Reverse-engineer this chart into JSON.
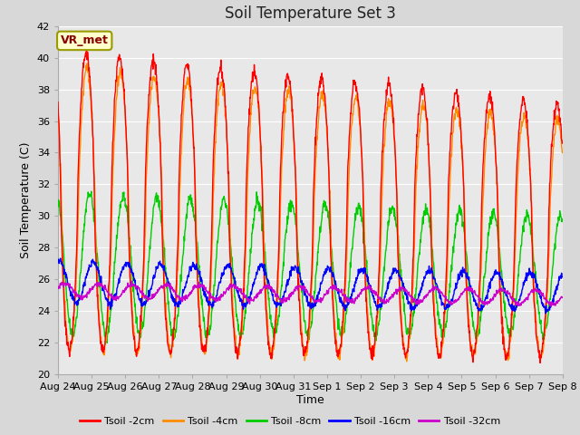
{
  "title": "Soil Temperature Set 3",
  "xlabel": "Time",
  "ylabel": "Soil Temperature (C)",
  "ylim": [
    20,
    42
  ],
  "yticks": [
    20,
    22,
    24,
    26,
    28,
    30,
    32,
    34,
    36,
    38,
    40,
    42
  ],
  "fig_bg": "#d8d8d8",
  "plot_bg": "#e8e8e8",
  "grid_color": "#ffffff",
  "annotation_text": "VR_met",
  "annotation_bg": "#ffffcc",
  "annotation_fg": "#8b0000",
  "annotation_border": "#999900",
  "legend_labels": [
    "Tsoil -2cm",
    "Tsoil -4cm",
    "Tsoil -8cm",
    "Tsoil -16cm",
    "Tsoil -32cm"
  ],
  "line_colors": [
    "#ff0000",
    "#ff8c00",
    "#00cc00",
    "#0000ff",
    "#cc00cc"
  ],
  "tick_labels": [
    "Aug 24",
    "Aug 25",
    "Aug 26",
    "Aug 27",
    "Aug 28",
    "Aug 29",
    "Aug 30",
    "Aug 31",
    "Sep 1",
    "Sep 2",
    "Sep 3",
    "Sep 4",
    "Sep 5",
    "Sep 6",
    "Sep 7",
    "Sep 8"
  ],
  "n_days": 15,
  "pts_per_day": 96,
  "title_fontsize": 12,
  "axis_fontsize": 9,
  "tick_fontsize": 8,
  "legend_fontsize": 8
}
